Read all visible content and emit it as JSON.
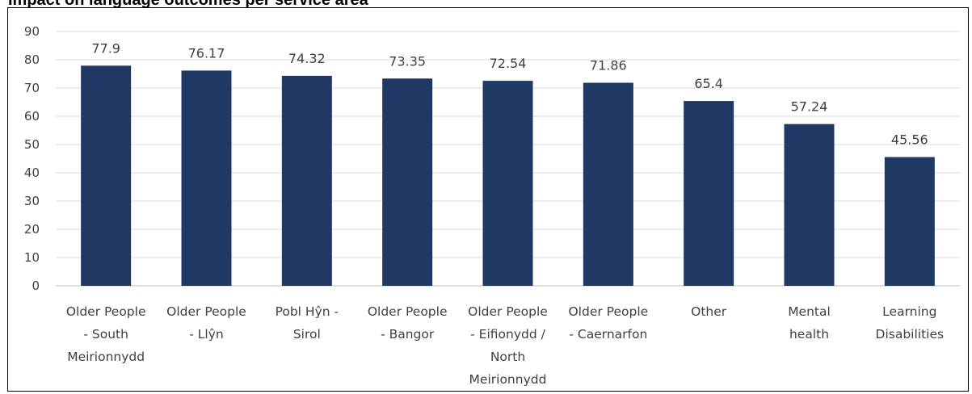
{
  "chart_data": {
    "type": "bar",
    "title": "Impact on language outcomes per service area",
    "xlabel": "",
    "ylabel": "",
    "ylim": [
      0,
      90
    ],
    "yticks": [
      0,
      10,
      20,
      30,
      40,
      50,
      60,
      70,
      80,
      90
    ],
    "grid": true,
    "legend": "none",
    "bar_color": "#1f3864",
    "categories": [
      [
        "Older People",
        "- South",
        "Meirionnydd"
      ],
      [
        "Older People",
        "- Llŷn"
      ],
      [
        "Pobl Hŷn -",
        "Sirol"
      ],
      [
        "Older People",
        "- Bangor"
      ],
      [
        "Older People",
        "- Eifionydd /",
        "North",
        "Meirionnydd"
      ],
      [
        "Older People",
        "- Caernarfon"
      ],
      [
        "Other"
      ],
      [
        "Mental",
        "health"
      ],
      [
        "Learning",
        "Disabilities"
      ]
    ],
    "values": [
      77.9,
      76.17,
      74.32,
      73.35,
      72.54,
      71.86,
      65.4,
      57.24,
      45.56
    ]
  }
}
